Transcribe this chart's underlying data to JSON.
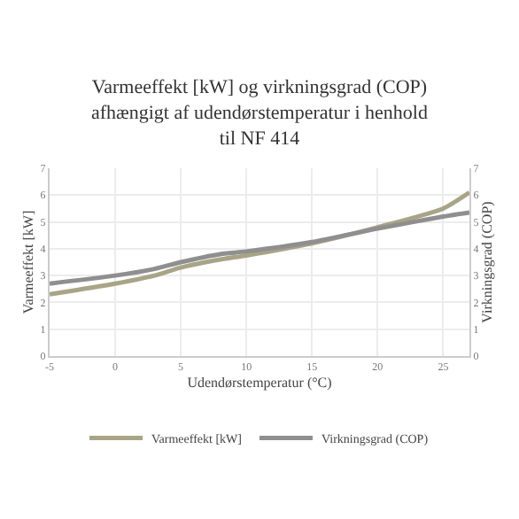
{
  "chart_data": {
    "type": "line",
    "title": "Varmeeffekt [kW] og virkningsgrad (COP) afhængigt af udendørstemperatur i henhold til NF 414",
    "xlabel": "Udendørstemperatur (°C)",
    "ylabel": "Varmeeffekt [kW]",
    "y2label": "Virkningsgrad (COP)",
    "x": [
      -5,
      0,
      3,
      5,
      8,
      10,
      15,
      20,
      25,
      27
    ],
    "series": [
      {
        "name": "Varmeeffekt [kW]",
        "color": "#a8a486",
        "values": [
          2.3,
          2.7,
          3.0,
          3.3,
          3.6,
          3.75,
          4.2,
          4.8,
          5.5,
          6.1
        ]
      },
      {
        "name": "Virkningsgrad (COP)",
        "color": "#8f8f8f",
        "axis": "y2",
        "values": [
          2.7,
          3.0,
          3.25,
          3.5,
          3.8,
          3.9,
          4.25,
          4.75,
          5.2,
          5.35
        ]
      }
    ],
    "xlim": [
      -5,
      27
    ],
    "xticks": [
      -5,
      0,
      5,
      10,
      15,
      20,
      25
    ],
    "ylim": [
      0,
      7
    ],
    "yticks": [
      0,
      1,
      2,
      3,
      4,
      5,
      6,
      7
    ],
    "y2lim": [
      0,
      7
    ],
    "y2ticks": [
      0,
      1,
      2,
      3,
      4,
      5,
      6,
      7
    ],
    "grid": true,
    "legend": "bottom",
    "marker": "none",
    "line_style": "solid"
  }
}
